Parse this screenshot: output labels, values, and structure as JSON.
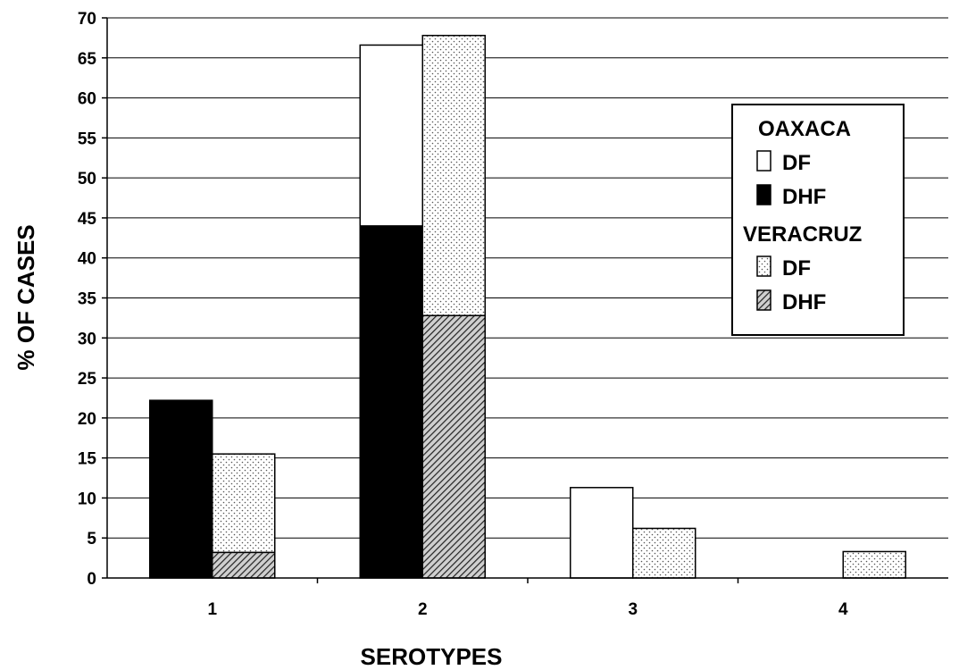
{
  "chart_data": {
    "type": "bar",
    "stacked": true,
    "grouped": true,
    "xlabel": "SEROTYPES",
    "ylabel": "% OF CASES",
    "ylim": [
      0,
      70
    ],
    "ytick_step": 5,
    "grid": true,
    "legend_position": "right",
    "categories": [
      "1",
      "2",
      "3",
      "4"
    ],
    "groups": [
      {
        "name": "OAXACA",
        "series": [
          {
            "name": "DF",
            "values": [
              0,
              22.6,
              11.3,
              0
            ],
            "pattern": "white"
          },
          {
            "name": "DHF",
            "values": [
              22.2,
              44,
              0,
              0
            ],
            "pattern": "black"
          }
        ]
      },
      {
        "name": "VERACRUZ",
        "series": [
          {
            "name": "DF",
            "values": [
              12.3,
              35,
              6.2,
              3.3
            ],
            "pattern": "dots"
          },
          {
            "name": "DHF",
            "values": [
              3.2,
              32.8,
              0,
              0
            ],
            "pattern": "hatch"
          }
        ]
      }
    ]
  }
}
